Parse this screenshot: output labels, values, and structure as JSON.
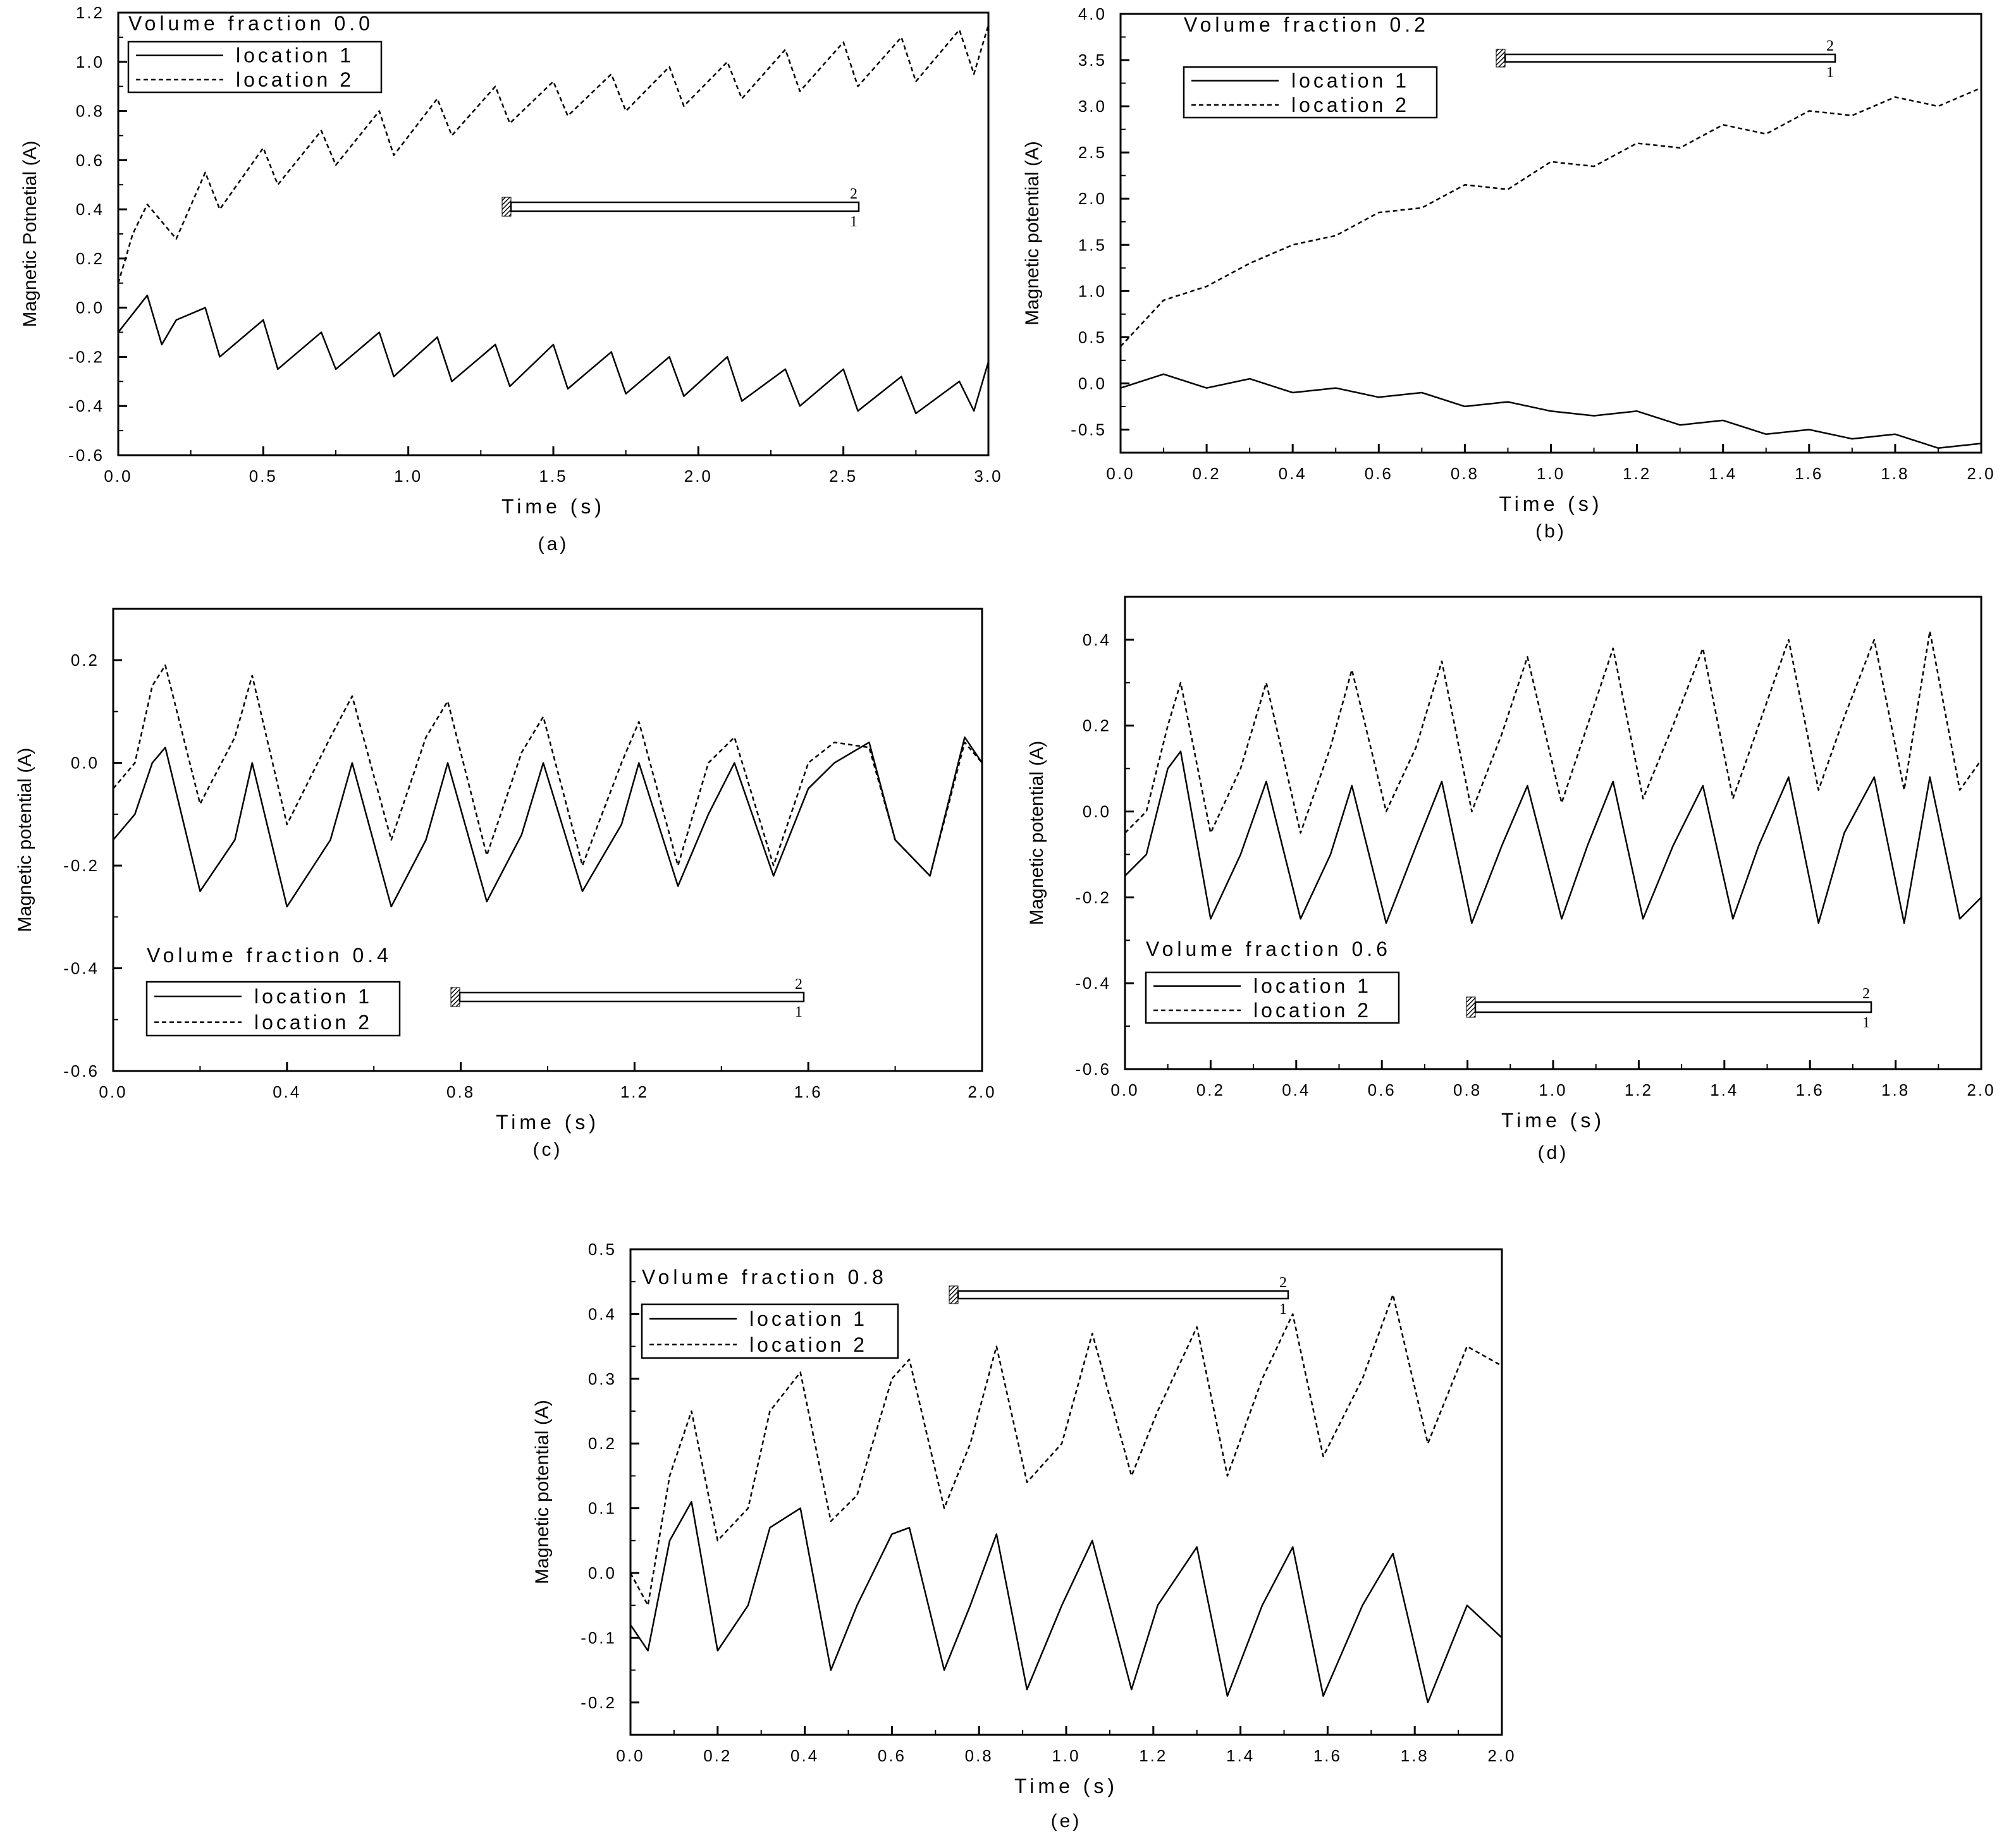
{
  "chart_data": [
    {
      "type": "line",
      "caption": "(a)",
      "title": "Volume fraction 0.0",
      "xlabel": "Time (s)",
      "ylabel": "Magnetic Potnetial (A)",
      "xlim": [
        0.0,
        3.0
      ],
      "ylim": [
        -0.6,
        1.2
      ],
      "xticks": [
        "0.0",
        "0.5",
        "1.0",
        "1.5",
        "2.0",
        "2.5",
        "3.0"
      ],
      "yticks": [
        "-0.6",
        "-0.4",
        "-0.2",
        "0.0",
        "0.2",
        "0.4",
        "0.6",
        "0.8",
        "1.0",
        "1.2"
      ],
      "legend_placement": "top-left",
      "grid": false,
      "beam_labels": [
        "2",
        "1"
      ],
      "series": [
        {
          "name": "location 1",
          "style": "solid",
          "x": [
            0.0,
            0.1,
            0.15,
            0.2,
            0.3,
            0.35,
            0.5,
            0.55,
            0.7,
            0.75,
            0.9,
            0.95,
            1.1,
            1.15,
            1.3,
            1.35,
            1.5,
            1.55,
            1.7,
            1.75,
            1.9,
            1.95,
            2.1,
            2.15,
            2.3,
            2.35,
            2.5,
            2.55,
            2.7,
            2.75,
            2.9,
            2.95,
            3.0
          ],
          "values": [
            -0.1,
            0.05,
            -0.15,
            -0.05,
            0.0,
            -0.2,
            -0.05,
            -0.25,
            -0.1,
            -0.25,
            -0.1,
            -0.28,
            -0.12,
            -0.3,
            -0.15,
            -0.32,
            -0.15,
            -0.33,
            -0.18,
            -0.35,
            -0.2,
            -0.36,
            -0.2,
            -0.38,
            -0.25,
            -0.4,
            -0.25,
            -0.42,
            -0.28,
            -0.43,
            -0.3,
            -0.42,
            -0.22
          ]
        },
        {
          "name": "location 2",
          "style": "dashed",
          "x": [
            0.0,
            0.05,
            0.1,
            0.15,
            0.2,
            0.3,
            0.35,
            0.5,
            0.55,
            0.7,
            0.75,
            0.9,
            0.95,
            1.1,
            1.15,
            1.3,
            1.35,
            1.5,
            1.55,
            1.7,
            1.75,
            1.9,
            1.95,
            2.1,
            2.15,
            2.3,
            2.35,
            2.5,
            2.55,
            2.7,
            2.75,
            2.9,
            2.95,
            3.0
          ],
          "values": [
            0.1,
            0.3,
            0.42,
            0.35,
            0.28,
            0.55,
            0.4,
            0.65,
            0.5,
            0.72,
            0.58,
            0.8,
            0.62,
            0.85,
            0.7,
            0.9,
            0.75,
            0.92,
            0.78,
            0.95,
            0.8,
            0.98,
            0.82,
            1.0,
            0.85,
            1.05,
            0.88,
            1.08,
            0.9,
            1.1,
            0.92,
            1.13,
            0.95,
            1.15
          ]
        }
      ]
    },
    {
      "type": "line",
      "caption": "(b)",
      "title": "Volume fraction 0.2",
      "xlabel": "Time (s)",
      "ylabel": "Magnetic potential (A)",
      "xlim": [
        0.0,
        2.0
      ],
      "ylim": [
        -0.75,
        4.0
      ],
      "xticks": [
        "0.0",
        "0.2",
        "0.4",
        "0.6",
        "0.8",
        "1.0",
        "1.2",
        "1.4",
        "1.6",
        "1.8",
        "2.0"
      ],
      "yticks": [
        "-0.5",
        "0.0",
        "0.5",
        "1.0",
        "1.5",
        "2.0",
        "2.5",
        "3.0",
        "3.5",
        "4.0"
      ],
      "legend_placement": "top-left",
      "grid": false,
      "beam_labels": [
        "2",
        "1"
      ],
      "series": [
        {
          "name": "location 1",
          "style": "solid",
          "x": [
            0.0,
            0.1,
            0.2,
            0.3,
            0.4,
            0.5,
            0.6,
            0.7,
            0.8,
            0.9,
            1.0,
            1.1,
            1.2,
            1.3,
            1.4,
            1.5,
            1.6,
            1.7,
            1.8,
            1.9,
            2.0
          ],
          "values": [
            -0.05,
            0.1,
            -0.05,
            0.05,
            -0.1,
            -0.05,
            -0.15,
            -0.1,
            -0.25,
            -0.2,
            -0.3,
            -0.35,
            -0.3,
            -0.45,
            -0.4,
            -0.55,
            -0.5,
            -0.6,
            -0.55,
            -0.7,
            -0.65
          ]
        },
        {
          "name": "location 2",
          "style": "dashed",
          "x": [
            0.0,
            0.1,
            0.2,
            0.3,
            0.4,
            0.5,
            0.6,
            0.7,
            0.8,
            0.9,
            1.0,
            1.1,
            1.2,
            1.3,
            1.4,
            1.5,
            1.6,
            1.7,
            1.8,
            1.9,
            2.0
          ],
          "values": [
            0.4,
            0.9,
            1.05,
            1.3,
            1.5,
            1.6,
            1.85,
            1.9,
            2.15,
            2.1,
            2.4,
            2.35,
            2.6,
            2.55,
            2.8,
            2.7,
            2.95,
            2.9,
            3.1,
            3.0,
            3.2
          ]
        }
      ]
    },
    {
      "type": "line",
      "caption": "(c)",
      "title": "Volume fraction 0.4",
      "xlabel": "Time (s)",
      "ylabel": "Magnetic potential (A)",
      "xlim": [
        0.0,
        2.0
      ],
      "ylim": [
        -0.6,
        0.3
      ],
      "xticks": [
        "0.0",
        "0.4",
        "0.8",
        "1.2",
        "1.6",
        "2.0"
      ],
      "yticks": [
        "-0.6",
        "-0.4",
        "-0.2",
        "0.0",
        "0.2"
      ],
      "legend_placement": "bottom-left",
      "grid": false,
      "beam_labels": [
        "2",
        "1"
      ],
      "series": [
        {
          "name": "location 1",
          "style": "solid",
          "x": [
            0.0,
            0.05,
            0.09,
            0.12,
            0.2,
            0.28,
            0.32,
            0.4,
            0.5,
            0.55,
            0.64,
            0.72,
            0.77,
            0.86,
            0.94,
            0.99,
            1.08,
            1.17,
            1.21,
            1.3,
            1.37,
            1.43,
            1.52,
            1.6,
            1.66,
            1.74,
            1.8,
            1.88,
            1.96,
            2.0
          ],
          "values": [
            -0.15,
            -0.1,
            0.0,
            0.03,
            -0.25,
            -0.15,
            0.0,
            -0.28,
            -0.15,
            0.0,
            -0.28,
            -0.15,
            0.0,
            -0.27,
            -0.14,
            0.0,
            -0.25,
            -0.12,
            0.0,
            -0.24,
            -0.1,
            0.0,
            -0.22,
            -0.05,
            0.0,
            0.04,
            -0.15,
            -0.22,
            0.05,
            0.0
          ]
        },
        {
          "name": "location 2",
          "style": "dashed",
          "x": [
            0.0,
            0.05,
            0.09,
            0.12,
            0.2,
            0.28,
            0.32,
            0.4,
            0.5,
            0.55,
            0.64,
            0.72,
            0.77,
            0.86,
            0.94,
            0.99,
            1.08,
            1.17,
            1.21,
            1.3,
            1.37,
            1.43,
            1.52,
            1.6,
            1.66,
            1.74,
            1.8,
            1.88,
            1.96,
            2.0
          ],
          "values": [
            -0.05,
            0.0,
            0.15,
            0.19,
            -0.08,
            0.05,
            0.17,
            -0.12,
            0.05,
            0.13,
            -0.15,
            0.05,
            0.12,
            -0.18,
            0.02,
            0.09,
            -0.2,
            0.0,
            0.08,
            -0.2,
            0.0,
            0.05,
            -0.2,
            0.0,
            0.04,
            0.03,
            -0.15,
            -0.22,
            0.04,
            0.0
          ]
        }
      ]
    },
    {
      "type": "line",
      "caption": "(d)",
      "title": "Volume fraction 0.6",
      "xlabel": "Time (s)",
      "ylabel": "Magnetic potential (A)",
      "xlim": [
        0.0,
        2.0
      ],
      "ylim": [
        -0.6,
        0.5
      ],
      "xticks": [
        "0.0",
        "0.2",
        "0.4",
        "0.6",
        "0.8",
        "1.0",
        "1.2",
        "1.4",
        "1.6",
        "1.8",
        "2.0"
      ],
      "yticks": [
        "-0.6",
        "-0.4",
        "-0.2",
        "0.0",
        "0.2",
        "0.4"
      ],
      "legend_placement": "bottom-left",
      "grid": false,
      "beam_labels": [
        "2",
        "1"
      ],
      "series": [
        {
          "name": "location 1",
          "style": "solid",
          "x": [
            0.0,
            0.05,
            0.1,
            0.13,
            0.2,
            0.27,
            0.33,
            0.41,
            0.48,
            0.53,
            0.61,
            0.68,
            0.74,
            0.81,
            0.88,
            0.94,
            1.02,
            1.08,
            1.14,
            1.21,
            1.28,
            1.35,
            1.42,
            1.48,
            1.55,
            1.62,
            1.68,
            1.75,
            1.82,
            1.88,
            1.95,
            2.0
          ],
          "values": [
            -0.15,
            -0.1,
            0.1,
            0.14,
            -0.25,
            -0.1,
            0.07,
            -0.25,
            -0.1,
            0.06,
            -0.26,
            -0.08,
            0.07,
            -0.26,
            -0.08,
            0.06,
            -0.25,
            -0.08,
            0.07,
            -0.25,
            -0.08,
            0.06,
            -0.25,
            -0.08,
            0.08,
            -0.26,
            -0.05,
            0.08,
            -0.26,
            0.08,
            -0.25,
            -0.2
          ]
        },
        {
          "name": "location 2",
          "style": "dashed",
          "x": [
            0.0,
            0.05,
            0.1,
            0.13,
            0.2,
            0.27,
            0.33,
            0.41,
            0.48,
            0.53,
            0.61,
            0.68,
            0.74,
            0.81,
            0.88,
            0.94,
            1.02,
            1.08,
            1.14,
            1.21,
            1.28,
            1.35,
            1.42,
            1.48,
            1.55,
            1.62,
            1.68,
            1.75,
            1.82,
            1.88,
            1.95,
            2.0
          ],
          "values": [
            -0.05,
            0.0,
            0.2,
            0.3,
            -0.05,
            0.1,
            0.3,
            -0.05,
            0.15,
            0.33,
            0.0,
            0.15,
            0.35,
            0.0,
            0.18,
            0.36,
            0.02,
            0.2,
            0.38,
            0.03,
            0.2,
            0.38,
            0.03,
            0.2,
            0.4,
            0.05,
            0.22,
            0.4,
            0.05,
            0.42,
            0.05,
            0.12
          ]
        }
      ]
    },
    {
      "type": "line",
      "caption": "(e)",
      "title": "Volume fraction 0.8",
      "xlabel": "Time (s)",
      "ylabel": "Magnetic potential (A)",
      "xlim": [
        0.0,
        2.0
      ],
      "ylim": [
        -0.25,
        0.5
      ],
      "xticks": [
        "0.0",
        "0.2",
        "0.4",
        "0.6",
        "0.8",
        "1.0",
        "1.2",
        "1.4",
        "1.6",
        "1.8",
        "2.0"
      ],
      "yticks": [
        "-0.2",
        "-0.1",
        "0.0",
        "0.1",
        "0.2",
        "0.3",
        "0.4",
        "0.5"
      ],
      "legend_placement": "top-left",
      "grid": false,
      "beam_labels": [
        "2",
        "1"
      ],
      "series": [
        {
          "name": "location 1",
          "style": "solid",
          "x": [
            0.0,
            0.04,
            0.09,
            0.14,
            0.2,
            0.27,
            0.32,
            0.39,
            0.46,
            0.52,
            0.6,
            0.64,
            0.72,
            0.78,
            0.84,
            0.91,
            0.99,
            1.06,
            1.15,
            1.21,
            1.3,
            1.37,
            1.45,
            1.52,
            1.59,
            1.68,
            1.75,
            1.83,
            1.92,
            2.0
          ],
          "values": [
            -0.08,
            -0.12,
            0.05,
            0.11,
            -0.12,
            -0.05,
            0.07,
            0.1,
            -0.15,
            -0.05,
            0.06,
            0.07,
            -0.15,
            -0.05,
            0.06,
            -0.18,
            -0.05,
            0.05,
            -0.18,
            -0.05,
            0.04,
            -0.19,
            -0.05,
            0.04,
            -0.19,
            -0.05,
            0.03,
            -0.2,
            -0.05,
            -0.1
          ]
        },
        {
          "name": "location 2",
          "style": "dashed",
          "x": [
            0.0,
            0.04,
            0.09,
            0.14,
            0.2,
            0.27,
            0.32,
            0.39,
            0.46,
            0.52,
            0.6,
            0.64,
            0.72,
            0.78,
            0.84,
            0.91,
            0.99,
            1.06,
            1.15,
            1.21,
            1.3,
            1.37,
            1.45,
            1.52,
            1.59,
            1.68,
            1.75,
            1.83,
            1.92,
            2.0
          ],
          "values": [
            0.0,
            -0.05,
            0.15,
            0.25,
            0.05,
            0.1,
            0.25,
            0.31,
            0.08,
            0.12,
            0.3,
            0.33,
            0.1,
            0.2,
            0.35,
            0.14,
            0.2,
            0.37,
            0.15,
            0.25,
            0.38,
            0.15,
            0.3,
            0.4,
            0.18,
            0.3,
            0.43,
            0.2,
            0.35,
            0.32
          ]
        }
      ]
    }
  ]
}
